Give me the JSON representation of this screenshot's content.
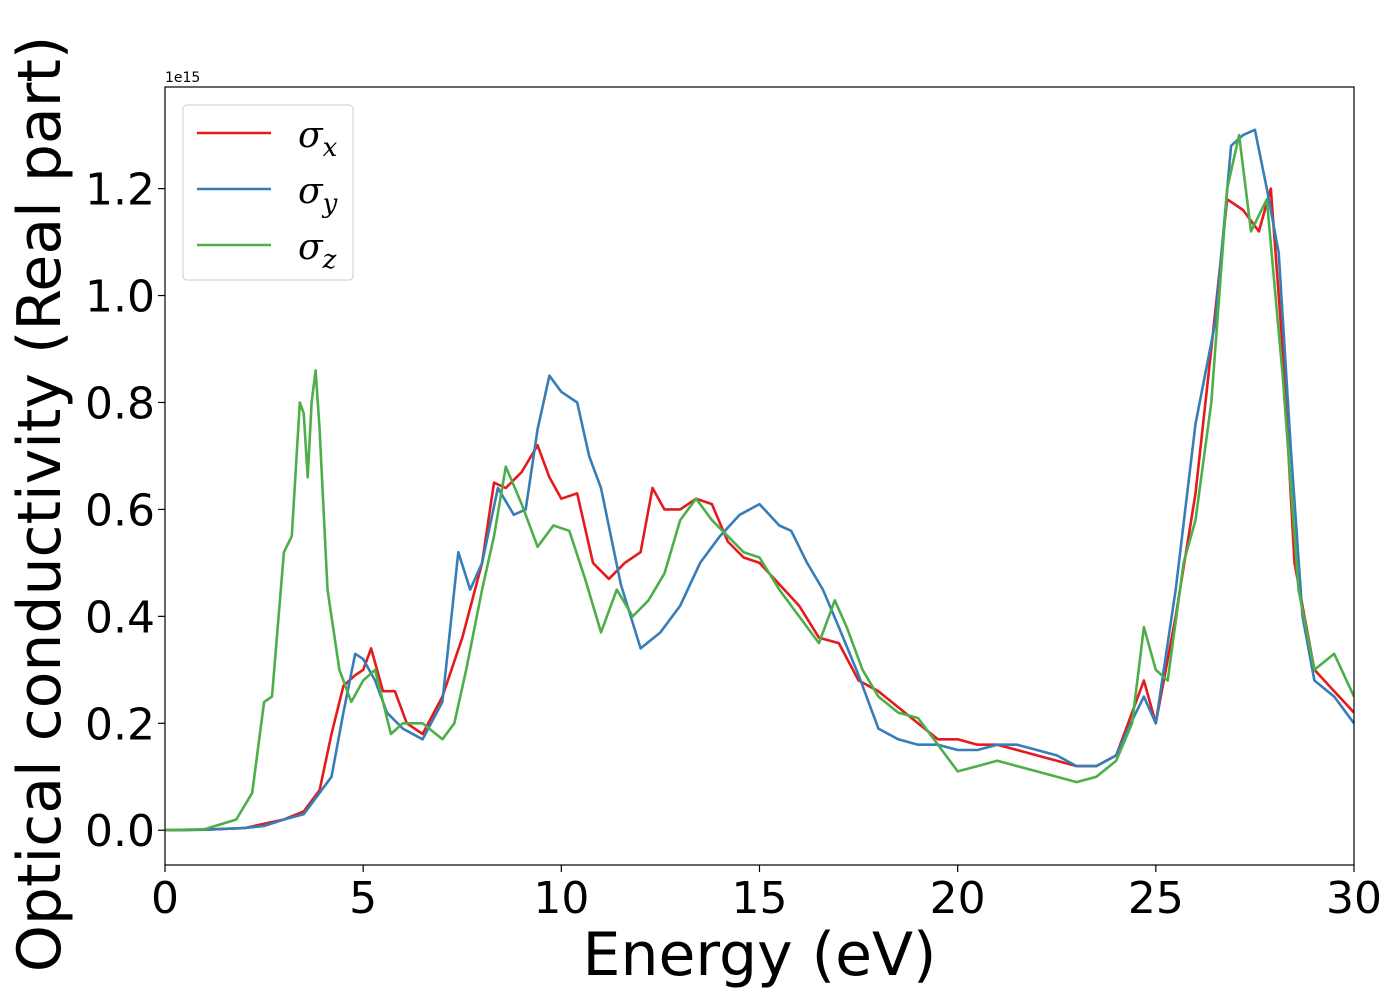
{
  "chart_data": {
    "type": "line",
    "xlabel": "Energy (eV)",
    "ylabel": "Optical conductivity (Real part)",
    "y_offset_text": "1e15",
    "xlim": [
      0,
      30
    ],
    "ylim": [
      -0.065,
      1.39
    ],
    "xticks": [
      0,
      5,
      10,
      15,
      20,
      25,
      30
    ],
    "xtick_labels": [
      "0",
      "5",
      "10",
      "15",
      "20",
      "25",
      "30"
    ],
    "yticks": [
      0.0,
      0.2,
      0.4,
      0.6,
      0.8,
      1.0,
      1.2
    ],
    "ytick_labels": [
      "0.0",
      "0.2",
      "0.4",
      "0.6",
      "0.8",
      "1.0",
      "1.2"
    ],
    "grid": false,
    "legend_position": "top-left",
    "series": [
      {
        "name": "σx",
        "legend_base": "σ",
        "legend_sub": "x",
        "color": "#e41a1c",
        "x": [
          0,
          1,
          2,
          2.5,
          3,
          3.5,
          3.9,
          4.2,
          4.5,
          4.8,
          5.0,
          5.2,
          5.5,
          5.8,
          6.1,
          6.5,
          7.0,
          7.5,
          8.0,
          8.3,
          8.6,
          9.0,
          9.4,
          9.7,
          10.0,
          10.4,
          10.8,
          11.2,
          11.6,
          12.0,
          12.3,
          12.6,
          13.0,
          13.4,
          13.8,
          14.2,
          14.6,
          15.0,
          15.5,
          16.0,
          16.5,
          17.0,
          17.5,
          18.0,
          18.5,
          19.0,
          19.5,
          20.0,
          20.5,
          21.0,
          21.5,
          22.0,
          22.5,
          23.0,
          23.5,
          24.0,
          24.3,
          24.7,
          25.0,
          25.5,
          26.0,
          26.4,
          26.8,
          27.2,
          27.6,
          27.9,
          28.2,
          28.5,
          29.0,
          29.5,
          30.0
        ],
        "y": [
          0.0,
          0.001,
          0.004,
          0.012,
          0.02,
          0.035,
          0.075,
          0.18,
          0.27,
          0.29,
          0.3,
          0.34,
          0.26,
          0.26,
          0.2,
          0.18,
          0.25,
          0.36,
          0.5,
          0.65,
          0.64,
          0.67,
          0.72,
          0.66,
          0.62,
          0.63,
          0.5,
          0.47,
          0.5,
          0.52,
          0.64,
          0.6,
          0.6,
          0.62,
          0.61,
          0.54,
          0.51,
          0.5,
          0.46,
          0.42,
          0.36,
          0.35,
          0.28,
          0.26,
          0.23,
          0.2,
          0.17,
          0.17,
          0.16,
          0.16,
          0.15,
          0.14,
          0.13,
          0.12,
          0.12,
          0.14,
          0.2,
          0.28,
          0.2,
          0.4,
          0.63,
          0.9,
          1.18,
          1.16,
          1.12,
          1.2,
          0.9,
          0.5,
          0.3,
          0.26,
          0.22
        ]
      },
      {
        "name": "σy",
        "legend_base": "σ",
        "legend_sub": "y",
        "color": "#377eb8",
        "x": [
          0,
          1,
          2,
          2.5,
          3,
          3.5,
          3.9,
          4.2,
          4.5,
          4.8,
          5.0,
          5.3,
          5.6,
          6.0,
          6.5,
          7.0,
          7.4,
          7.7,
          8.0,
          8.4,
          8.8,
          9.1,
          9.4,
          9.7,
          10.0,
          10.4,
          10.7,
          11.0,
          11.5,
          12.0,
          12.5,
          13.0,
          13.5,
          14.0,
          14.5,
          15.0,
          15.5,
          15.8,
          16.2,
          16.6,
          17.0,
          17.5,
          18.0,
          18.5,
          19.0,
          19.5,
          20.0,
          20.5,
          21.0,
          21.5,
          22.0,
          22.5,
          23.0,
          23.5,
          24.0,
          24.3,
          24.7,
          25.0,
          25.5,
          26.0,
          26.5,
          26.9,
          27.2,
          27.5,
          27.8,
          28.1,
          28.4,
          28.7,
          29.0,
          29.5,
          30.0
        ],
        "y": [
          0.0,
          0.001,
          0.004,
          0.008,
          0.02,
          0.03,
          0.07,
          0.1,
          0.22,
          0.33,
          0.32,
          0.28,
          0.22,
          0.19,
          0.17,
          0.24,
          0.52,
          0.45,
          0.5,
          0.64,
          0.59,
          0.6,
          0.75,
          0.85,
          0.82,
          0.8,
          0.7,
          0.64,
          0.46,
          0.34,
          0.37,
          0.42,
          0.5,
          0.55,
          0.59,
          0.61,
          0.57,
          0.56,
          0.5,
          0.45,
          0.38,
          0.29,
          0.19,
          0.17,
          0.16,
          0.16,
          0.15,
          0.15,
          0.16,
          0.16,
          0.15,
          0.14,
          0.12,
          0.12,
          0.14,
          0.19,
          0.25,
          0.2,
          0.45,
          0.76,
          0.95,
          1.28,
          1.3,
          1.31,
          1.2,
          1.08,
          0.72,
          0.4,
          0.28,
          0.25,
          0.2
        ]
      },
      {
        "name": "σz",
        "legend_base": "σ",
        "legend_sub": "z",
        "color": "#4daf4a",
        "x": [
          0,
          1,
          1.8,
          2.2,
          2.5,
          2.7,
          3.0,
          3.2,
          3.4,
          3.5,
          3.6,
          3.7,
          3.8,
          3.9,
          4.1,
          4.4,
          4.7,
          5.0,
          5.3,
          5.7,
          6.0,
          6.5,
          7.0,
          7.3,
          7.6,
          8.0,
          8.3,
          8.6,
          9.0,
          9.4,
          9.8,
          10.2,
          10.6,
          11.0,
          11.4,
          11.8,
          12.2,
          12.6,
          13.0,
          13.4,
          13.8,
          14.2,
          14.6,
          15.0,
          15.5,
          16.0,
          16.5,
          16.9,
          17.2,
          17.6,
          18.0,
          18.5,
          19.0,
          19.5,
          20.0,
          20.5,
          21.0,
          21.5,
          22.0,
          22.5,
          23.0,
          23.5,
          24.0,
          24.4,
          24.7,
          25.0,
          25.3,
          25.7,
          26.0,
          26.4,
          26.8,
          27.1,
          27.4,
          27.8,
          28.2,
          28.6,
          29.0,
          29.5,
          30.0
        ],
        "y": [
          0.0,
          0.002,
          0.02,
          0.07,
          0.24,
          0.25,
          0.52,
          0.55,
          0.8,
          0.78,
          0.66,
          0.8,
          0.86,
          0.75,
          0.45,
          0.3,
          0.24,
          0.28,
          0.3,
          0.18,
          0.2,
          0.2,
          0.17,
          0.2,
          0.3,
          0.45,
          0.55,
          0.68,
          0.61,
          0.53,
          0.57,
          0.56,
          0.47,
          0.37,
          0.45,
          0.4,
          0.43,
          0.48,
          0.58,
          0.62,
          0.58,
          0.55,
          0.52,
          0.51,
          0.45,
          0.4,
          0.35,
          0.43,
          0.38,
          0.3,
          0.25,
          0.22,
          0.21,
          0.16,
          0.11,
          0.12,
          0.13,
          0.12,
          0.11,
          0.1,
          0.09,
          0.1,
          0.13,
          0.2,
          0.38,
          0.3,
          0.28,
          0.5,
          0.58,
          0.8,
          1.2,
          1.3,
          1.12,
          1.18,
          0.85,
          0.45,
          0.3,
          0.33,
          0.25
        ]
      }
    ]
  }
}
